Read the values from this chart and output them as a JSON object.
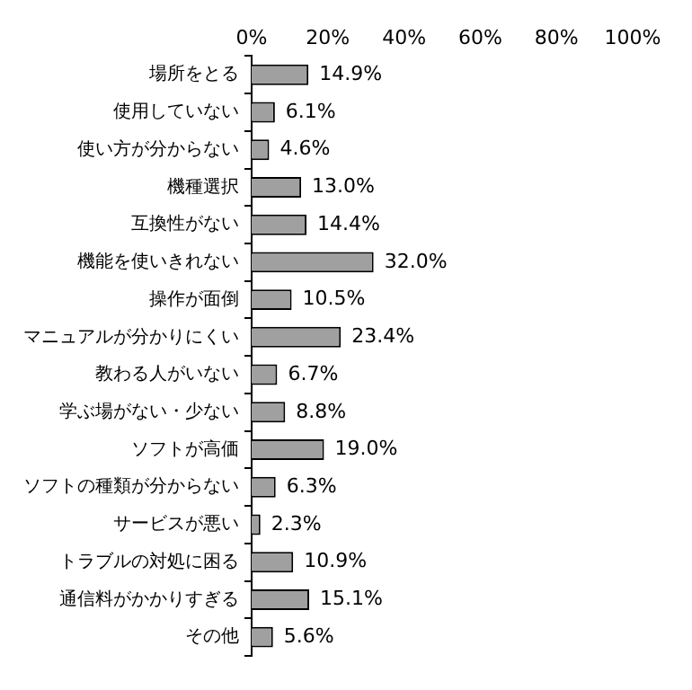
{
  "chart_data": {
    "type": "bar",
    "orientation": "horizontal",
    "categories": [
      "場所をとる",
      "使用していない",
      "使い方が分からない",
      "機種選択",
      "互換性がない",
      "機能を使いきれない",
      "操作が面倒",
      "マニュアルが分かりにくい",
      "教わる人がいない",
      "学ぶ場がない・少ない",
      "ソフトが高価",
      "ソフトの種類が分からない",
      "サービスが悪い",
      "トラブルの対処に困る",
      "通信料がかかりすぎる",
      "その他"
    ],
    "values": [
      14.9,
      6.1,
      4.6,
      13.0,
      14.4,
      32.0,
      10.5,
      23.4,
      6.7,
      8.8,
      19.0,
      6.3,
      2.3,
      10.9,
      15.1,
      5.6
    ],
    "value_labels": [
      "14.9%",
      "6.1%",
      "4.6%",
      "13.0%",
      "14.4%",
      "32.0%",
      "10.5%",
      "23.4%",
      "6.7%",
      "8.8%",
      "19.0%",
      "6.3%",
      "2.3%",
      "10.9%",
      "15.1%",
      "5.6%"
    ],
    "color": "#a0a0a0",
    "xlim": [
      0,
      100
    ],
    "xticks": [
      {
        "value": 0,
        "label": "0%"
      },
      {
        "value": 20,
        "label": "20%"
      },
      {
        "value": 40,
        "label": "40%"
      },
      {
        "value": 60,
        "label": "60%"
      },
      {
        "value": 80,
        "label": "80%"
      },
      {
        "value": 100,
        "label": "100%"
      }
    ],
    "grid": false,
    "legend": false
  }
}
